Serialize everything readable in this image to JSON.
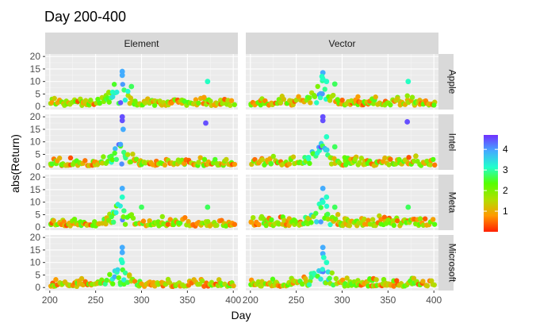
{
  "chart_data": {
    "type": "scatter",
    "title": "Day 200-400",
    "xlabel": "Day",
    "ylabel": "abs(Return)",
    "xlim": [
      195,
      405
    ],
    "ylim": [
      -1.2,
      21
    ],
    "x_ticks": [
      "200",
      "250",
      "300",
      "350",
      "400"
    ],
    "x_tick_values": [
      200,
      250,
      300,
      350,
      400
    ],
    "y_ticks": [
      "0",
      "5",
      "10",
      "15",
      "20"
    ],
    "y_tick_values": [
      0,
      5,
      10,
      15,
      20
    ],
    "columns": [
      "Element",
      "Vector"
    ],
    "rows": [
      "Apple",
      "Intel",
      "Meta",
      "Microsoft"
    ],
    "grid": true,
    "legend": {
      "position": "right",
      "ticks": [
        "1",
        "2",
        "3",
        "4"
      ],
      "tick_values": [
        1,
        2,
        3,
        4
      ],
      "range": [
        0,
        4.7
      ],
      "colors": [
        "#FF2000",
        "#FF9900",
        "#B0E000",
        "#55FF00",
        "#22FFCC",
        "#44AAFF",
        "#7030FF"
      ]
    },
    "panels": [
      {
        "row": "Apple",
        "column": "Element",
        "baseline": 1.5,
        "spread": 2.8,
        "peak": 275,
        "peak_boost": 8,
        "outliers": [
          [
            279,
            14
          ],
          [
            279,
            12.5
          ],
          [
            372,
            10
          ],
          [
            289,
            8
          ]
        ]
      },
      {
        "row": "Apple",
        "column": "Vector",
        "baseline": 1.8,
        "spread": 3.2,
        "peak": 275,
        "peak_boost": 7,
        "outliers": [
          [
            279,
            13.5
          ],
          [
            279,
            11
          ],
          [
            372,
            10
          ],
          [
            283,
            10
          ],
          [
            292,
            9
          ],
          [
            278,
            12
          ]
        ]
      },
      {
        "row": "Intel",
        "column": "Element",
        "baseline": 1.5,
        "spread": 3,
        "peak": 275,
        "peak_boost": 8,
        "outliers": [
          [
            279,
            20
          ],
          [
            279,
            18.5
          ],
          [
            370,
            17.5
          ],
          [
            280,
            15
          ]
        ]
      },
      {
        "row": "Intel",
        "column": "Vector",
        "baseline": 1.8,
        "spread": 3.5,
        "peak": 275,
        "peak_boost": 9,
        "outliers": [
          [
            279,
            18.5
          ],
          [
            279,
            20
          ],
          [
            371,
            18
          ],
          [
            283,
            12
          ],
          [
            292,
            8
          ]
        ]
      },
      {
        "row": "Meta",
        "column": "Element",
        "baseline": 1.5,
        "spread": 3.2,
        "peak": 275,
        "peak_boost": 7,
        "outliers": [
          [
            279,
            15.5
          ],
          [
            279,
            12
          ],
          [
            372,
            8
          ],
          [
            300,
            8
          ]
        ]
      },
      {
        "row": "Meta",
        "column": "Vector",
        "baseline": 2,
        "spread": 3.5,
        "peak": 275,
        "peak_boost": 7,
        "outliers": [
          [
            279,
            15.5
          ],
          [
            279,
            10
          ],
          [
            283,
            12
          ],
          [
            292,
            8
          ],
          [
            372,
            8
          ]
        ]
      },
      {
        "row": "Microsoft",
        "column": "Element",
        "baseline": 1.3,
        "spread": 2.6,
        "peak": 275,
        "peak_boost": 7,
        "outliers": [
          [
            279,
            16
          ],
          [
            279,
            14
          ],
          [
            279,
            10
          ],
          [
            278,
            11
          ]
        ]
      },
      {
        "row": "Microsoft",
        "column": "Vector",
        "baseline": 1.6,
        "spread": 3,
        "peak": 275,
        "peak_boost": 8,
        "outliers": [
          [
            279,
            16
          ],
          [
            279,
            13.5
          ],
          [
            283,
            10
          ],
          [
            280,
            12
          ]
        ]
      }
    ]
  }
}
